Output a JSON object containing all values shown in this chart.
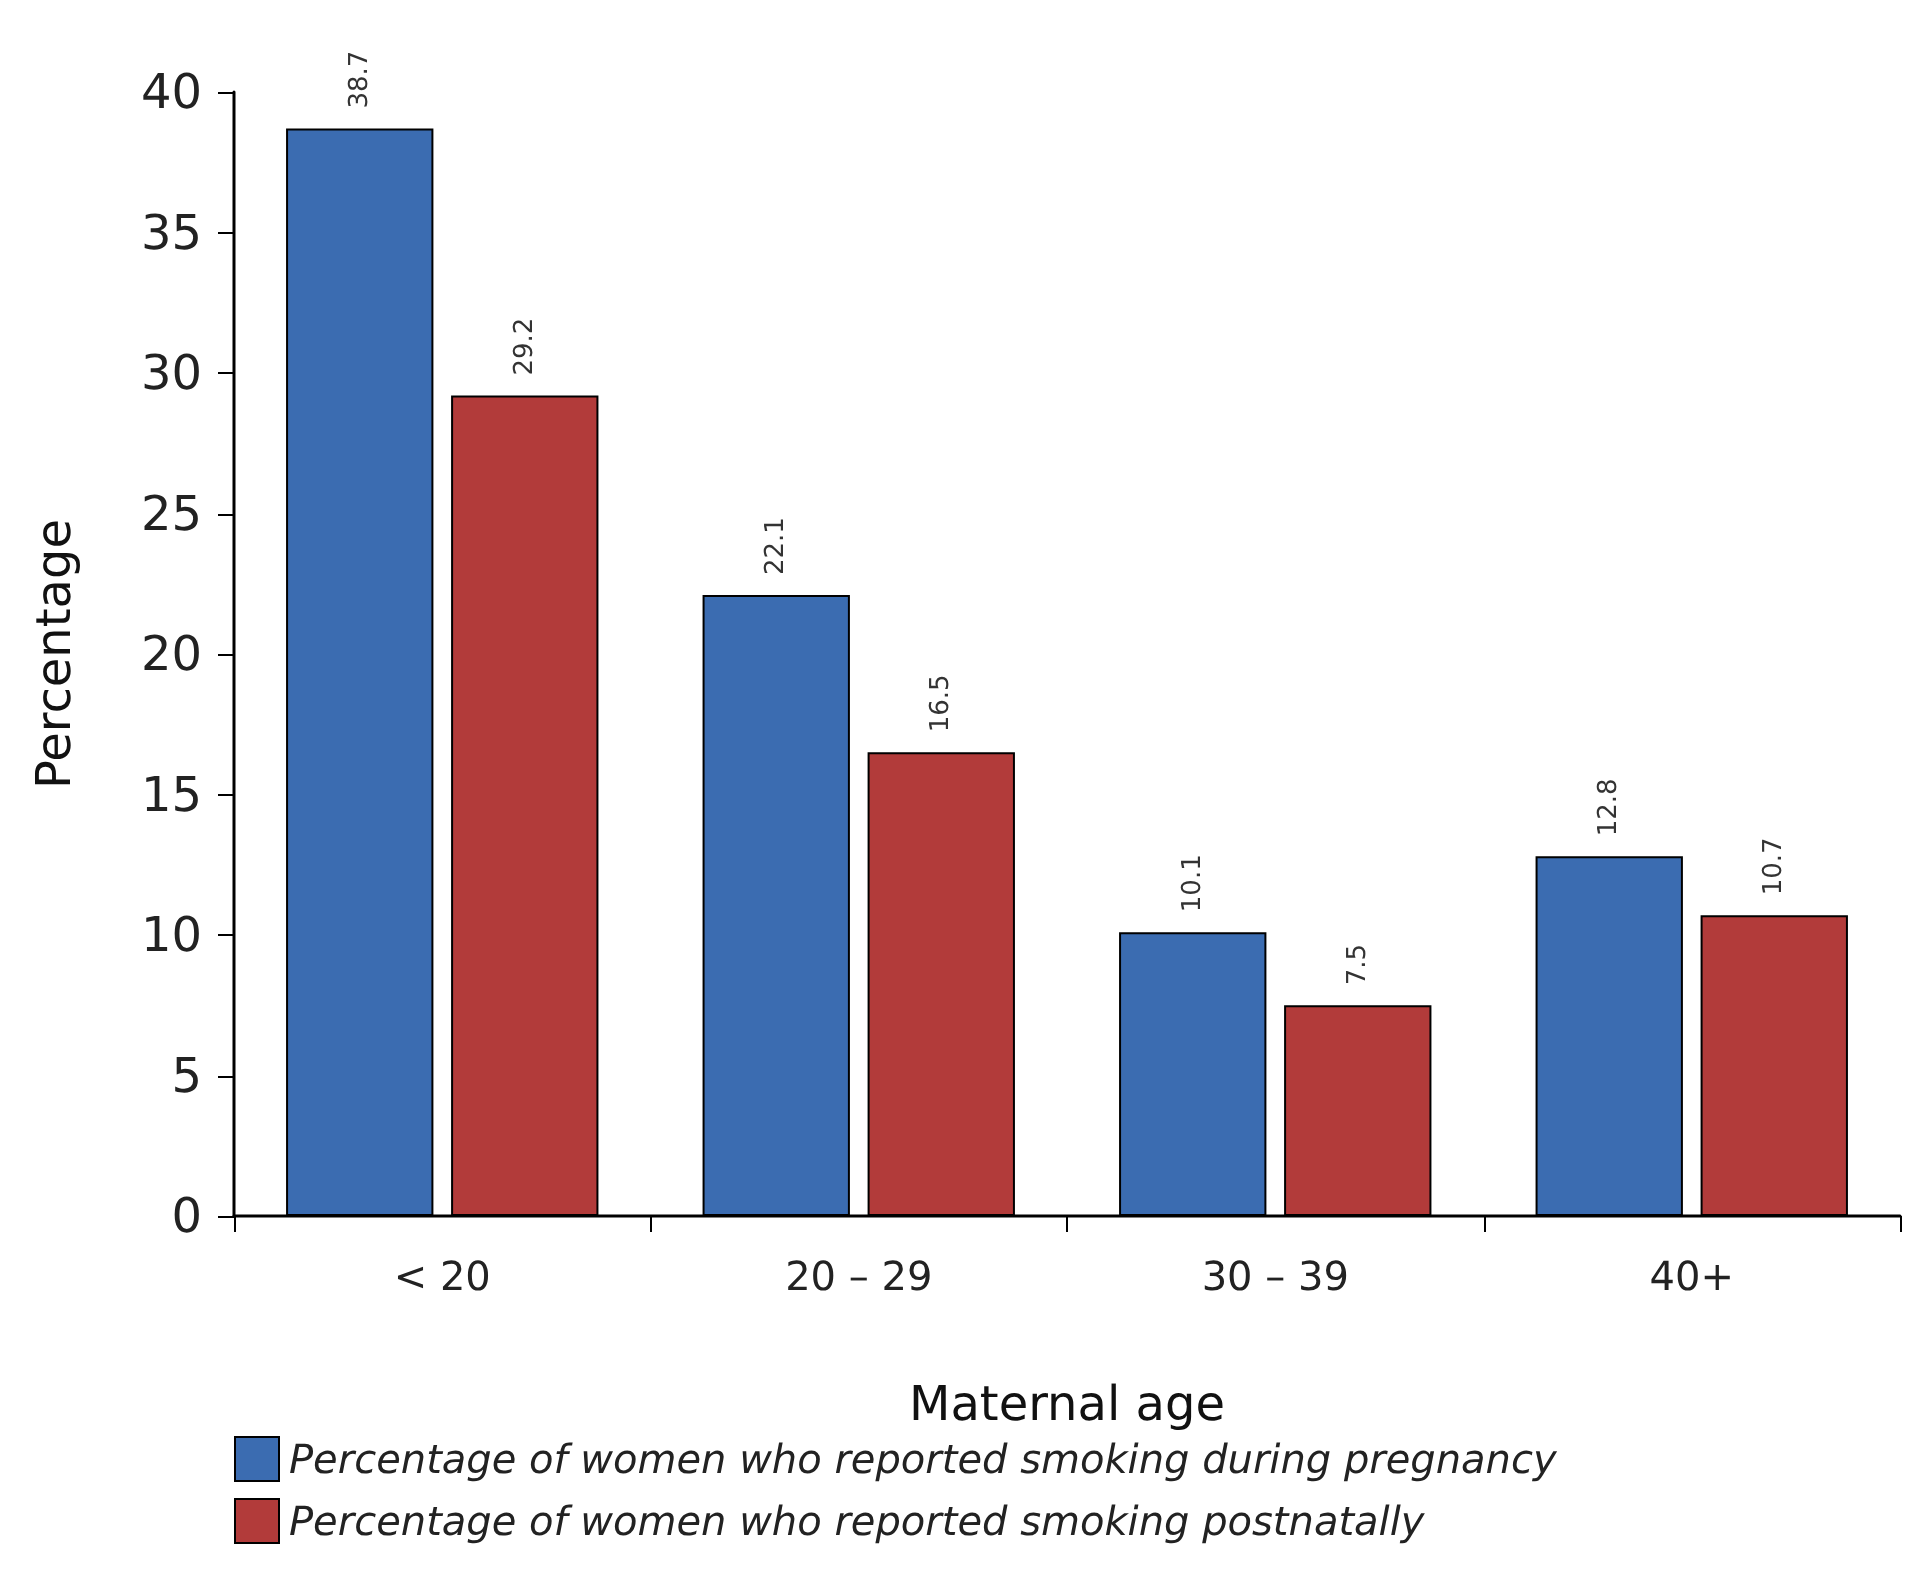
{
  "chart_data": {
    "type": "bar",
    "xlabel": "Maternal age",
    "ylabel": "Percentage",
    "categories": [
      "< 20",
      "20 – 29",
      "30 – 39",
      "40+"
    ],
    "series": [
      {
        "name": "Percentage of women who reported smoking during pregnancy",
        "color": "#3b6cb1",
        "values": [
          38.7,
          22.1,
          10.1,
          12.8
        ]
      },
      {
        "name": "Percentage of women who reported smoking postnatally",
        "color": "#b23b3a",
        "values": [
          29.2,
          16.5,
          7.5,
          10.7
        ]
      }
    ],
    "ylim": [
      0,
      40
    ],
    "yticks": [
      0,
      5,
      10,
      15,
      20,
      25,
      30,
      35,
      40
    ],
    "grid": false,
    "legend": "bottom left",
    "data_labels": true
  }
}
